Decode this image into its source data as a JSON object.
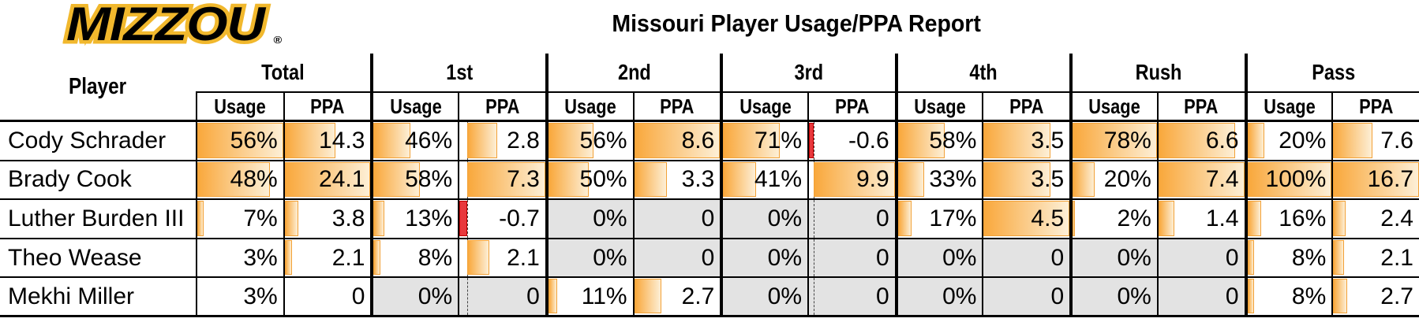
{
  "logo": {
    "text": "MIZZOU",
    "reg_mark": "®"
  },
  "title": "Missouri Player Usage/PPA Report",
  "colors": {
    "mizzou_gold": "#F1B82D",
    "bar_fill": "#F9A83C",
    "bar_fill_fade": "#FDEFD6",
    "bar_border": "#F2A137",
    "negative_bar_fill": "#E8383D",
    "negative_bar_border": "#C00000",
    "zero_cell_bg": "#E3E3E3",
    "grid_line": "#000000"
  },
  "chart_data": {
    "type": "table",
    "title": "Missouri Player Usage/PPA Report",
    "row_header": "Player",
    "column_groups": [
      "Total",
      "1st",
      "2nd",
      "3rd",
      "4th",
      "Rush",
      "Pass"
    ],
    "sub_columns": [
      "Usage",
      "PPA"
    ],
    "usage_unit": "%",
    "rows": [
      {
        "player": "Cody Schrader",
        "values": [
          [
            56,
            14.3
          ],
          [
            46,
            2.8
          ],
          [
            56,
            8.6
          ],
          [
            71,
            -0.6
          ],
          [
            58,
            3.5
          ],
          [
            78,
            6.6
          ],
          [
            20,
            7.6
          ]
        ]
      },
      {
        "player": "Brady Cook",
        "values": [
          [
            48,
            24.1
          ],
          [
            58,
            7.3
          ],
          [
            50,
            3.3
          ],
          [
            41,
            9.9
          ],
          [
            33,
            3.5
          ],
          [
            20,
            7.4
          ],
          [
            100,
            16.7
          ]
        ]
      },
      {
        "player": "Luther Burden III",
        "values": [
          [
            7,
            3.8
          ],
          [
            13,
            -0.7
          ],
          [
            0,
            0
          ],
          [
            0,
            0
          ],
          [
            17,
            4.5
          ],
          [
            2,
            1.4
          ],
          [
            16,
            2.4
          ]
        ]
      },
      {
        "player": "Theo Wease",
        "values": [
          [
            3,
            2.1
          ],
          [
            8,
            2.1
          ],
          [
            0,
            0
          ],
          [
            0,
            0
          ],
          [
            0,
            0
          ],
          [
            0,
            0
          ],
          [
            8,
            2.1
          ]
        ]
      },
      {
        "player": "Mekhi Miller",
        "values": [
          [
            3,
            0
          ],
          [
            0,
            0
          ],
          [
            11,
            2.7
          ],
          [
            0,
            0
          ],
          [
            0,
            0
          ],
          [
            0,
            0
          ],
          [
            8,
            2.7
          ]
        ]
      }
    ],
    "bar_scales": [
      [
        3,
        56
      ],
      [
        0,
        24.1
      ],
      [
        0,
        105
      ],
      [
        -0.7,
        7.3
      ],
      [
        0,
        105
      ],
      [
        0,
        8.6
      ],
      [
        0,
        105
      ],
      [
        -0.6,
        9.9
      ],
      [
        0,
        105
      ],
      [
        0,
        4.5
      ],
      [
        0,
        78
      ],
      [
        0,
        7.4
      ],
      [
        0,
        100
      ],
      [
        0,
        16.7
      ]
    ],
    "zero_usage_cells_grayed": true,
    "negative_bars_red": true
  }
}
